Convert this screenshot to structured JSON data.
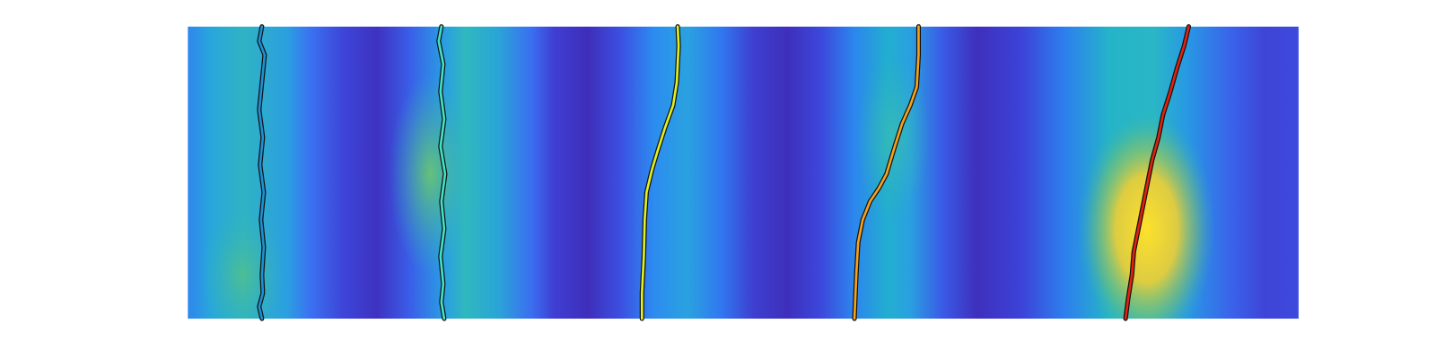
{
  "traces": [
    {
      "color": "#1e90d4"
    },
    {
      "color": "#3fe3c4"
    },
    {
      "color": "#dff023"
    },
    {
      "color": "#f5a21c"
    },
    {
      "color": "#e3210f"
    }
  ]
}
